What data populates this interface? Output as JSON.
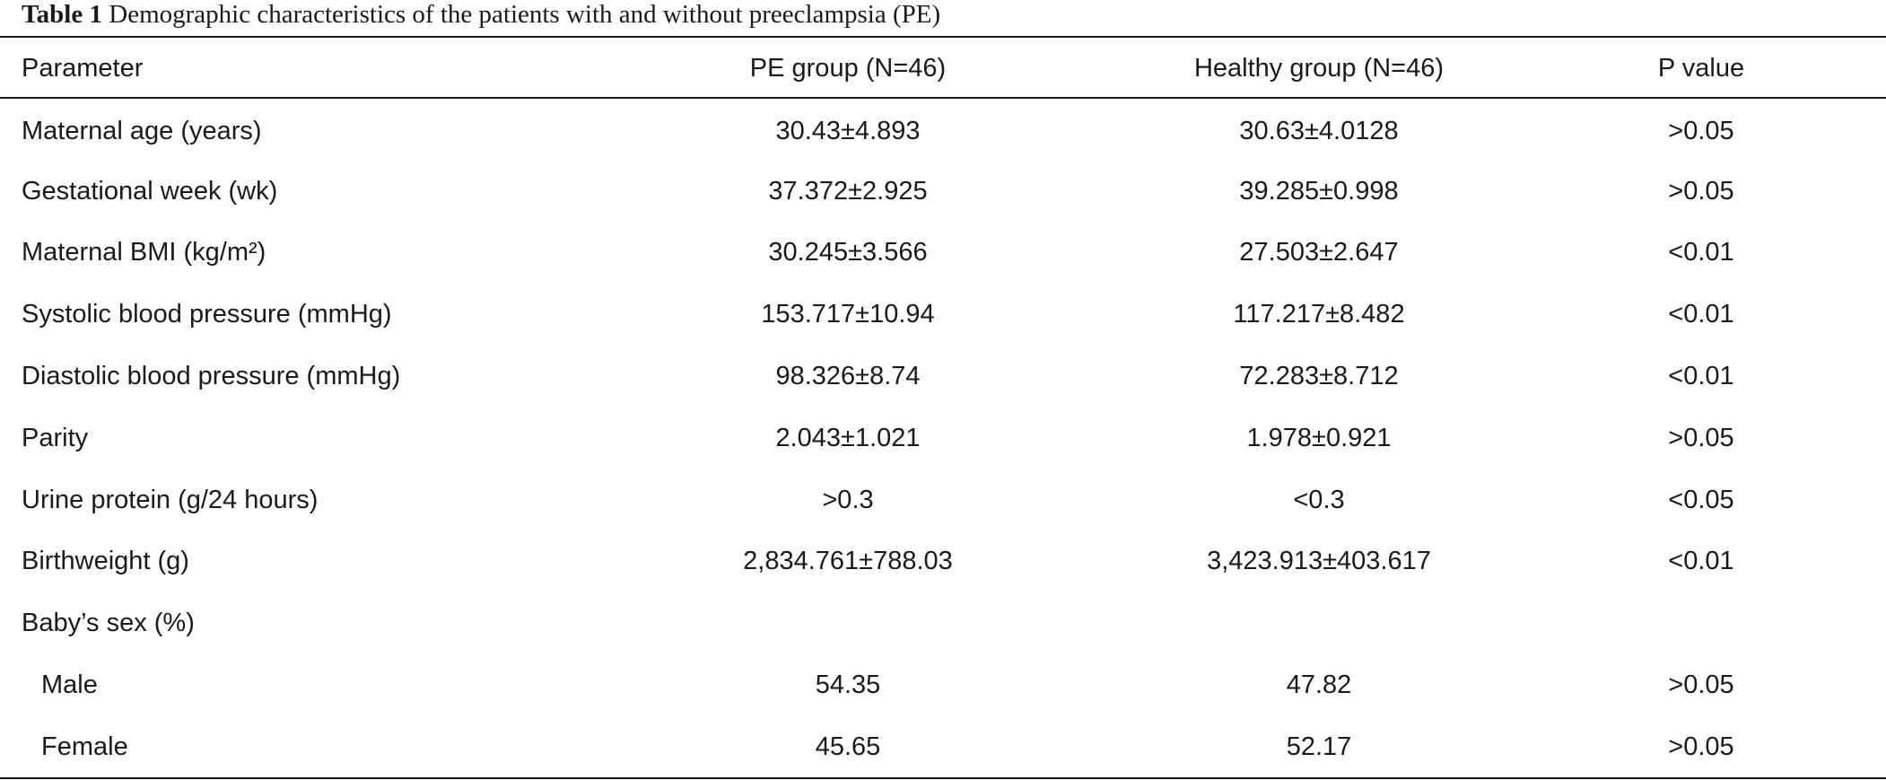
{
  "caption": {
    "label": "Table 1",
    "text": "Demographic characteristics of the patients with and without preeclampsia (PE)"
  },
  "table": {
    "headers": [
      "Parameter",
      "PE group (N=46)",
      "Healthy group (N=46)",
      "P value"
    ],
    "rows": [
      {
        "parameter": "Maternal age (years)",
        "pe": "30.43±4.893",
        "healthy": "30.63±4.0128",
        "p": ">0.05"
      },
      {
        "parameter": "Gestational week (wk)",
        "pe": "37.372±2.925",
        "healthy": "39.285±0.998",
        "p": ">0.05"
      },
      {
        "parameter": "Maternal BMI (kg/m²)",
        "pe": "30.245±3.566",
        "healthy": "27.503±2.647",
        "p": "<0.01"
      },
      {
        "parameter": "Systolic blood pressure (mmHg)",
        "pe": "153.717±10.94",
        "healthy": "117.217±8.482",
        "p": "<0.01"
      },
      {
        "parameter": "Diastolic blood pressure (mmHg)",
        "pe": "98.326±8.74",
        "healthy": "72.283±8.712",
        "p": "<0.01"
      },
      {
        "parameter": "Parity",
        "pe": "2.043±1.021",
        "healthy": "1.978±0.921",
        "p": ">0.05"
      },
      {
        "parameter": "Urine protein (g/24 hours)",
        "pe": ">0.3",
        "healthy": "<0.3",
        "p": "<0.05"
      },
      {
        "parameter": "Birthweight (g)",
        "pe": "2,834.761±788.03",
        "healthy": "3,423.913±403.617",
        "p": "<0.01"
      },
      {
        "parameter": "Baby’s sex (%)",
        "pe": "",
        "healthy": "",
        "p": ""
      },
      {
        "parameter": "Male",
        "pe": "54.35",
        "healthy": "47.82",
        "p": ">0.05"
      },
      {
        "parameter": "Female",
        "pe": "45.65",
        "healthy": "52.17",
        "p": ">0.05"
      }
    ]
  }
}
